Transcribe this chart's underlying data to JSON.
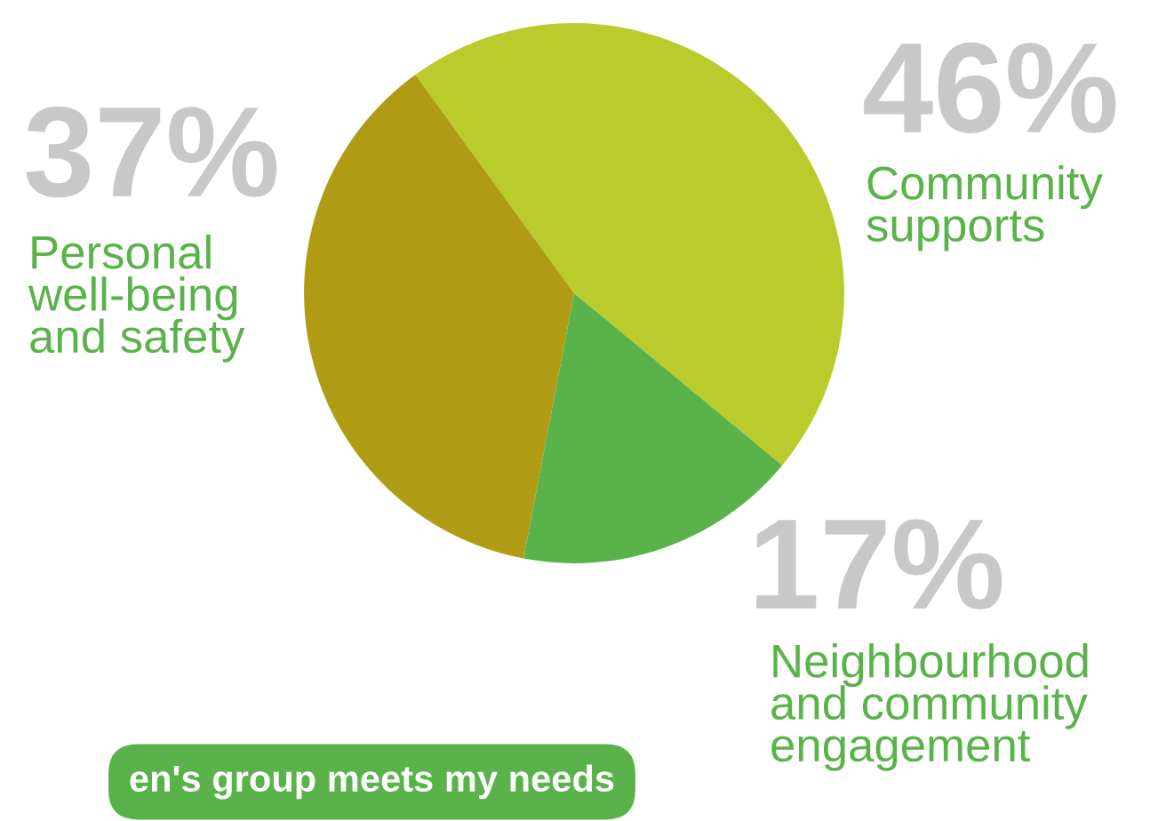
{
  "chart_data": {
    "type": "pie",
    "categories": [
      "Community\nsupports",
      "Neighbourhood\nand community\nengagement",
      "Personal\nwell-being\nand safety"
    ],
    "values": [
      46,
      17,
      37
    ],
    "value_labels": [
      "46%",
      "17%",
      "37%"
    ],
    "colors": [
      "#b9cc2c",
      "#5ab34a",
      "#b09c14"
    ],
    "annotations": [
      "en's group meets my needs"
    ]
  }
}
